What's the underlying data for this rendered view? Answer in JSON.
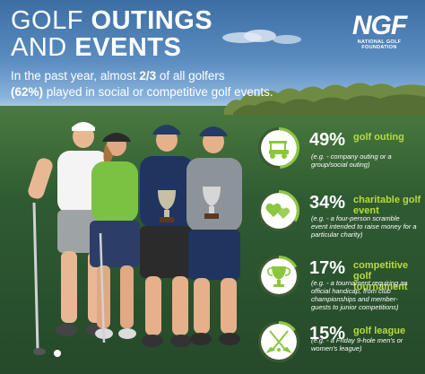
{
  "title": {
    "line1_thin": "GOLF",
    "line1_bold": "OUTINGS",
    "line2_thin": "AND",
    "line2_bold": "EVENTS"
  },
  "logo": {
    "mark": "NGF",
    "subtitle": "NATIONAL GOLF FOUNDATION"
  },
  "intro": {
    "part1": "In the past year, almost ",
    "fraction": "2/3",
    "part2": " of all golfers",
    "percent": "(62%)",
    "part3": " played in social or competitive golf events."
  },
  "stats": [
    {
      "percent": "49%",
      "category": "golf outing",
      "description": "(e.g. - company outing or a group/social outing)",
      "icon": "golf-cart-icon",
      "fraction": 0.49
    },
    {
      "percent": "34%",
      "category": "charitable golf event",
      "description": "(e.g. - a four-person scramble event intended to raise money for a particular charity)",
      "icon": "hearts-icon",
      "fraction": 0.34
    },
    {
      "percent": "17%",
      "category": "competitive golf tournament",
      "description": "(e.g. - a tournament requiring an official handicap, from club championships and member-guests to junior competitions)",
      "icon": "trophy-icon",
      "fraction": 0.17
    },
    {
      "percent": "15%",
      "category": "golf league",
      "description": "(e.g. - a Friday 9-hole men's or women's league)",
      "icon": "crossed-clubs-icon",
      "fraction": 0.15
    }
  ],
  "colors": {
    "accent_green": "#8cc63f",
    "label_green": "#b8dc3c",
    "circle_bg": "#ffffff",
    "sky": "#5a8cc0",
    "grass": "#2f5b32"
  }
}
